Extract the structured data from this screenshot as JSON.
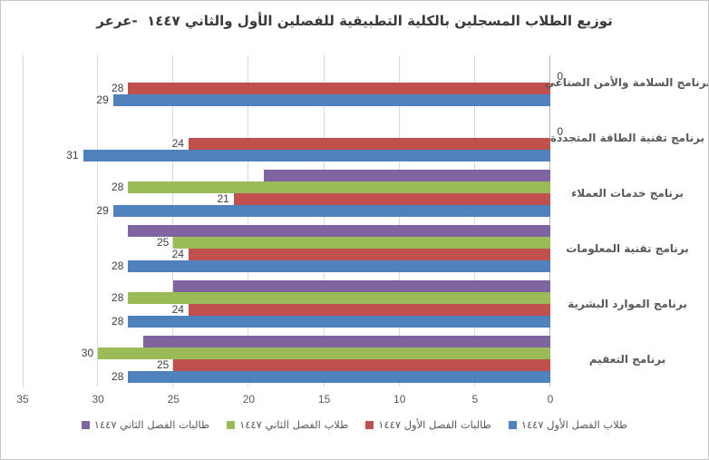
{
  "title": "توزيع الطلاب المسجلين بالكلية التطبيقية للفصلين الأول والثاني ١٤٤٧  -عرعر",
  "chart_data": {
    "type": "bar",
    "orientation": "horizontal",
    "direction": "rtl",
    "title": "توزيع الطلاب المسجلين بالكلية التطبيقية للفصلين الأول والثاني ١٤٤٧ -عرعر",
    "categories": [
      "برنامج السلامة والأمن الصناعي",
      "برنامج تقنية الطاقة المتجددة",
      "برنامج خدمات العملاء",
      "برنامج تقنية المعلومات",
      "برنامج الموارد البشرية",
      "برنامج التعقيم"
    ],
    "series": [
      {
        "name": "طالبات الفصل الثاني ١٤٤٧",
        "color": "#8064A2",
        "values": [
          0,
          0,
          19,
          28,
          25,
          27
        ],
        "labels": [
          "",
          "",
          "",
          "",
          "",
          ""
        ]
      },
      {
        "name": "طلاب الفصل الثاني ١٤٤٧",
        "color": "#9BBB59",
        "values": [
          0,
          0,
          28,
          25,
          28,
          30
        ],
        "labels": [
          "0",
          "0",
          "28",
          "25",
          "28",
          "30"
        ]
      },
      {
        "name": "طالبات الفصل الأول ١٤٤٧",
        "color": "#C0504D",
        "values": [
          28,
          24,
          21,
          24,
          24,
          25
        ],
        "labels": [
          "28",
          "24",
          "21",
          "24",
          "24",
          "25"
        ]
      },
      {
        "name": "طلاب الفصل الأول ١٤٤٧",
        "color": "#4F81BD",
        "values": [
          29,
          31,
          29,
          28,
          28,
          28
        ],
        "labels": [
          "29",
          "31",
          "29",
          "28",
          "28",
          "28"
        ]
      }
    ],
    "x_ticks": [
      35,
      30,
      25,
      20,
      15,
      10,
      5,
      0
    ],
    "xlim": [
      0,
      35
    ],
    "grid": true,
    "legend_position": "bottom",
    "colors": {
      "gridline": "#D9D9D9",
      "category_axis_line": "#B3B3B3",
      "tick_text": "#595959",
      "label_text": "#404040",
      "title_text": "#3A3A3A"
    }
  }
}
